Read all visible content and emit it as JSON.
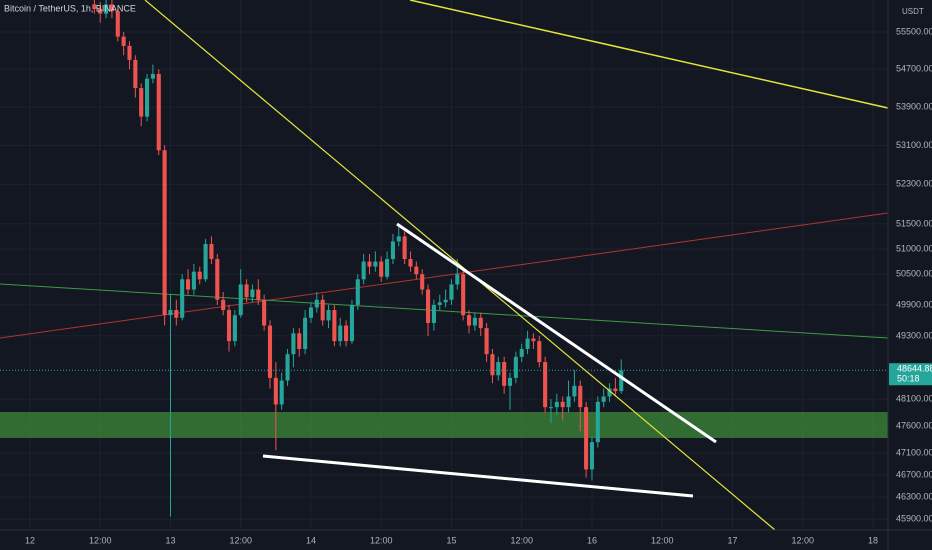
{
  "chart_data": {
    "type": "candlestick",
    "title": "Bitcoin / TetherUS, 1h, BINANCE",
    "currency": "USDT",
    "countdown": "50:18",
    "up_color": "#26a69a",
    "down_color": "#ef5350",
    "log_scale": true,
    "grid": true,
    "x": [
      11,
      12,
      13,
      14,
      15,
      16,
      17,
      18,
      19,
      20,
      21,
      22,
      23,
      24,
      25,
      26,
      27,
      28,
      29,
      30,
      31,
      32,
      33,
      34,
      35,
      36,
      37,
      38,
      39,
      40,
      41,
      42,
      43,
      44,
      45,
      46,
      47,
      48,
      49,
      50,
      51,
      52,
      53,
      54,
      55,
      56,
      57,
      58,
      59,
      60,
      61,
      62,
      63,
      64,
      65,
      66,
      67,
      68,
      69,
      70,
      71,
      72,
      73,
      74,
      75,
      76,
      77,
      78,
      79,
      80,
      81,
      82,
      83,
      84,
      85,
      86,
      87,
      88,
      89,
      90,
      91,
      92,
      93,
      94,
      95,
      96,
      97,
      98,
      99,
      100,
      101
    ],
    "open": [
      56100,
      56000,
      55900,
      56100,
      55950,
      55400,
      55200,
      54900,
      54300,
      53700,
      54500,
      54600,
      53000,
      49700,
      49800,
      49650,
      50400,
      50200,
      50550,
      50400,
      51100,
      50800,
      50000,
      49800,
      49200,
      49700,
      50300,
      50050,
      50200,
      50000,
      49500,
      48500,
      48000,
      48450,
      48950,
      49350,
      49050,
      49650,
      49850,
      50000,
      49600,
      49800,
      49200,
      49500,
      49200,
      49900,
      50400,
      50750,
      50650,
      50750,
      50450,
      50800,
      51150,
      51250,
      50800,
      50650,
      50500,
      50200,
      49550,
      49900,
      49950,
      50000,
      50300,
      50500,
      49700,
      49500,
      49650,
      49450,
      48950,
      48550,
      48800,
      48350,
      48500,
      48900,
      49050,
      49250,
      49200,
      48800,
      47950,
      47950,
      48050,
      47950,
      48150,
      48350,
      47950,
      46800,
      47300,
      48050,
      48150,
      48300,
      48250
    ],
    "high": [
      56250,
      56150,
      56200,
      56200,
      56000,
      55500,
      55300,
      55000,
      54400,
      54600,
      54800,
      54700,
      53100,
      50100,
      50000,
      50500,
      50600,
      50700,
      50650,
      51200,
      51250,
      50900,
      50150,
      49900,
      49800,
      50600,
      50400,
      50300,
      50400,
      50100,
      49600,
      48800,
      48600,
      49050,
      49450,
      49450,
      49800,
      49950,
      50150,
      50100,
      49900,
      49900,
      49650,
      49600,
      50000,
      50500,
      50900,
      50900,
      50950,
      50850,
      50950,
      51300,
      51500,
      51350,
      50950,
      50750,
      50600,
      50300,
      50000,
      50100,
      50200,
      50400,
      50800,
      50600,
      49800,
      49750,
      49750,
      49550,
      49050,
      48900,
      48900,
      48600,
      49000,
      49150,
      49400,
      49350,
      49300,
      48900,
      48100,
      48200,
      48150,
      48450,
      48650,
      48450,
      48050,
      47400,
      48150,
      48300,
      48400,
      48500,
      48850
    ],
    "low": [
      55900,
      55700,
      55800,
      55800,
      55300,
      55000,
      54700,
      54100,
      53500,
      53600,
      54400,
      52900,
      49500,
      45950,
      49500,
      49600,
      50100,
      50100,
      50300,
      50350,
      50700,
      49900,
      49700,
      49000,
      49100,
      49650,
      49950,
      49950,
      49900,
      49400,
      48300,
      47150,
      47900,
      48350,
      48700,
      48900,
      48950,
      49550,
      49750,
      49500,
      49450,
      49100,
      49100,
      49100,
      49150,
      49800,
      50300,
      50500,
      50550,
      50350,
      50400,
      50700,
      51050,
      50700,
      50550,
      50400,
      50100,
      49300,
      49400,
      49800,
      49850,
      49900,
      50200,
      49600,
      49350,
      49400,
      49300,
      48800,
      48400,
      48450,
      48200,
      47900,
      48400,
      48800,
      48950,
      49050,
      48700,
      47850,
      47650,
      47800,
      47700,
      47850,
      48050,
      47500,
      46650,
      46600,
      47200,
      47950,
      48050,
      48150,
      48200
    ],
    "close": [
      56000,
      55900,
      56100,
      55950,
      55400,
      55200,
      54900,
      54300,
      53700,
      54500,
      54600,
      53000,
      49700,
      49800,
      49650,
      50400,
      50200,
      50550,
      50400,
      51100,
      50800,
      50000,
      49800,
      49200,
      49700,
      50300,
      50050,
      50200,
      50000,
      49500,
      48500,
      48000,
      48450,
      48950,
      49350,
      49050,
      49650,
      49850,
      50000,
      49600,
      49800,
      49200,
      49500,
      49200,
      49900,
      50400,
      50750,
      50650,
      50750,
      50450,
      50800,
      51150,
      51250,
      50800,
      50650,
      50500,
      50200,
      49550,
      49900,
      49950,
      50000,
      50300,
      50500,
      49700,
      49500,
      49650,
      49450,
      48950,
      48550,
      48800,
      48350,
      48500,
      48900,
      49050,
      49250,
      49200,
      48800,
      47950,
      47950,
      48050,
      47950,
      48150,
      48350,
      47950,
      46800,
      47300,
      48050,
      48150,
      48300,
      48250,
      48644.88
    ],
    "xlim": [
      -5.12,
      146.57
    ],
    "xticks": [
      {
        "value": 0,
        "label": "12"
      },
      {
        "value": 12,
        "label": "12:00"
      },
      {
        "value": 24,
        "label": "13"
      },
      {
        "value": 36,
        "label": "12:00"
      },
      {
        "value": 48,
        "label": "14"
      },
      {
        "value": 60,
        "label": "12:00"
      },
      {
        "value": 72,
        "label": "15"
      },
      {
        "value": 84,
        "label": "12:00"
      },
      {
        "value": 96,
        "label": "16"
      },
      {
        "value": 108,
        "label": "12:00"
      },
      {
        "value": 120,
        "label": "17"
      },
      {
        "value": 132,
        "label": "12:00"
      },
      {
        "value": 144,
        "label": "18"
      }
    ],
    "ylim": [
      45708,
      56197
    ],
    "yticks": [
      {
        "value": 45900,
        "label": "45900.00"
      },
      {
        "value": 46300,
        "label": "46300.00"
      },
      {
        "value": 46700,
        "label": "46700.00"
      },
      {
        "value": 47100,
        "label": "47100.00"
      },
      {
        "value": 47600,
        "label": "47600.00"
      },
      {
        "value": 48100,
        "label": "48100.00"
      },
      {
        "value": 49300,
        "label": "49300.00"
      },
      {
        "value": 49900,
        "label": "49900.00"
      },
      {
        "value": 50500,
        "label": "50500.00"
      },
      {
        "value": 51000,
        "label": "51000.00"
      },
      {
        "value": 51500,
        "label": "51500.00"
      },
      {
        "value": 52300,
        "label": "52300.00"
      },
      {
        "value": 53100,
        "label": "53100.00"
      },
      {
        "value": 53900,
        "label": "53900.00"
      },
      {
        "value": 54700,
        "label": "54700.00"
      },
      {
        "value": 55500,
        "label": "55500.00"
      }
    ]
  }
}
